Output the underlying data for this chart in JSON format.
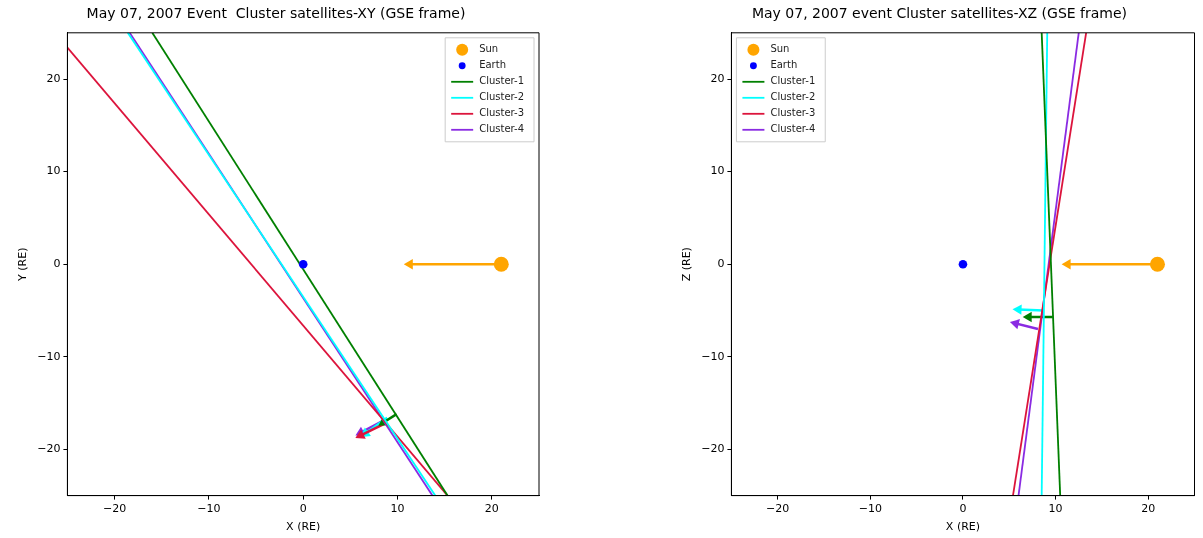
{
  "chart_data": [
    {
      "type": "line",
      "title": "May 07, 2007 Event  Cluster satellites-XY (GSE frame)",
      "xlabel": "X (RE)",
      "ylabel": "Y (RE)",
      "xlim": [
        -25,
        25
      ],
      "ylim": [
        -25,
        25
      ],
      "xticks": [
        -20,
        -10,
        0,
        10,
        20
      ],
      "yticks": [
        -20,
        -10,
        0,
        10,
        20
      ],
      "grid": false,
      "legend": "top right",
      "series": [
        {
          "name": "Sun",
          "type": "bubble",
          "color": "#ffa500",
          "x": [
            21
          ],
          "values": [
            0
          ],
          "sizes": [
            1
          ]
        },
        {
          "name": "Earth",
          "type": "bubble",
          "color": "#0000ff",
          "x": [
            0
          ],
          "values": [
            0
          ],
          "sizes": [
            0.33
          ]
        },
        {
          "name": "Cluster-1",
          "type": "line",
          "color": "#008000",
          "x": [
            -16.0,
            15.3
          ],
          "values": [
            25,
            -25
          ]
        },
        {
          "name": "Cluster-2",
          "type": "line",
          "color": "#00ffff",
          "x": [
            -18.6,
            14.0
          ],
          "values": [
            25,
            -25
          ]
        },
        {
          "name": "Cluster-3",
          "type": "line",
          "color": "#dc143c",
          "x": [
            -25,
            15.3
          ],
          "values": [
            23.4,
            -25
          ]
        },
        {
          "name": "Cluster-4",
          "type": "line",
          "color": "#8a2be2",
          "x": [
            -18.4,
            13.7
          ],
          "values": [
            25,
            -25
          ]
        },
        {
          "type": "line",
          "color": "#ffa500",
          "marker": "triangle",
          "x": [
            21,
            11.3
          ],
          "values": [
            0,
            0
          ]
        },
        {
          "type": "line",
          "color": "#008000",
          "marker": "triangle",
          "x": [
            9.9,
            8.5
          ],
          "values": [
            -16.2,
            -17.1
          ]
        },
        {
          "type": "line",
          "color": "#dc143c",
          "marker": "triangle",
          "x": [
            8.7,
            6.1
          ],
          "values": [
            -17.2,
            -18.5
          ]
        },
        {
          "type": "line",
          "color": "#00ffff",
          "marker": "triangle",
          "x": [
            8.9,
            6.6
          ],
          "values": [
            -16.6,
            -18.3
          ]
        },
        {
          "type": "line",
          "color": "#8a2be2",
          "marker": "triangle",
          "x": [
            8.7,
            6.1
          ],
          "values": [
            -16.8,
            -18.2
          ]
        }
      ]
    },
    {
      "type": "line",
      "title": "May 07, 2007 event Cluster satellites-XZ (GSE frame)",
      "xlabel": "X (RE)",
      "ylabel": "Z (RE)",
      "xlim": [
        -25,
        25
      ],
      "ylim": [
        -25,
        25
      ],
      "xticks": [
        -20,
        -10,
        0,
        10,
        20
      ],
      "yticks": [
        -20,
        -10,
        0,
        10,
        20
      ],
      "grid": false,
      "legend": "top left",
      "series": [
        {
          "name": "Sun",
          "type": "bubble",
          "color": "#ffa500",
          "x": [
            21
          ],
          "values": [
            0
          ],
          "sizes": [
            1
          ]
        },
        {
          "name": "Earth",
          "type": "bubble",
          "color": "#0000ff",
          "x": [
            0
          ],
          "values": [
            0
          ],
          "sizes": [
            0.33
          ]
        },
        {
          "name": "Cluster-1",
          "type": "line",
          "color": "#008000",
          "x": [
            8.5,
            10.5
          ],
          "values": [
            25,
            -25
          ]
        },
        {
          "name": "Cluster-2",
          "type": "line",
          "color": "#00ffff",
          "x": [
            9.1,
            8.5
          ],
          "values": [
            25,
            -25
          ]
        },
        {
          "name": "Cluster-3",
          "type": "line",
          "color": "#dc143c",
          "x": [
            13.3,
            5.4
          ],
          "values": [
            25,
            -25
          ]
        },
        {
          "name": "Cluster-4",
          "type": "line",
          "color": "#8a2be2",
          "x": [
            12.5,
            6.0
          ],
          "values": [
            25,
            -25
          ]
        },
        {
          "type": "line",
          "color": "#ffa500",
          "marker": "triangle",
          "x": [
            21,
            11.3
          ],
          "values": [
            0,
            0
          ]
        },
        {
          "type": "line",
          "color": "#00ffff",
          "marker": "triangle",
          "x": [
            8.7,
            6.0
          ],
          "values": [
            -5.0,
            -4.9
          ]
        },
        {
          "type": "line",
          "color": "#008000",
          "marker": "triangle",
          "x": [
            9.7,
            7.1
          ],
          "values": [
            -5.7,
            -5.7
          ]
        },
        {
          "type": "line",
          "color": "#8a2be2",
          "marker": "triangle",
          "x": [
            8.1,
            5.7
          ],
          "values": [
            -7.0,
            -6.4
          ]
        }
      ]
    }
  ]
}
